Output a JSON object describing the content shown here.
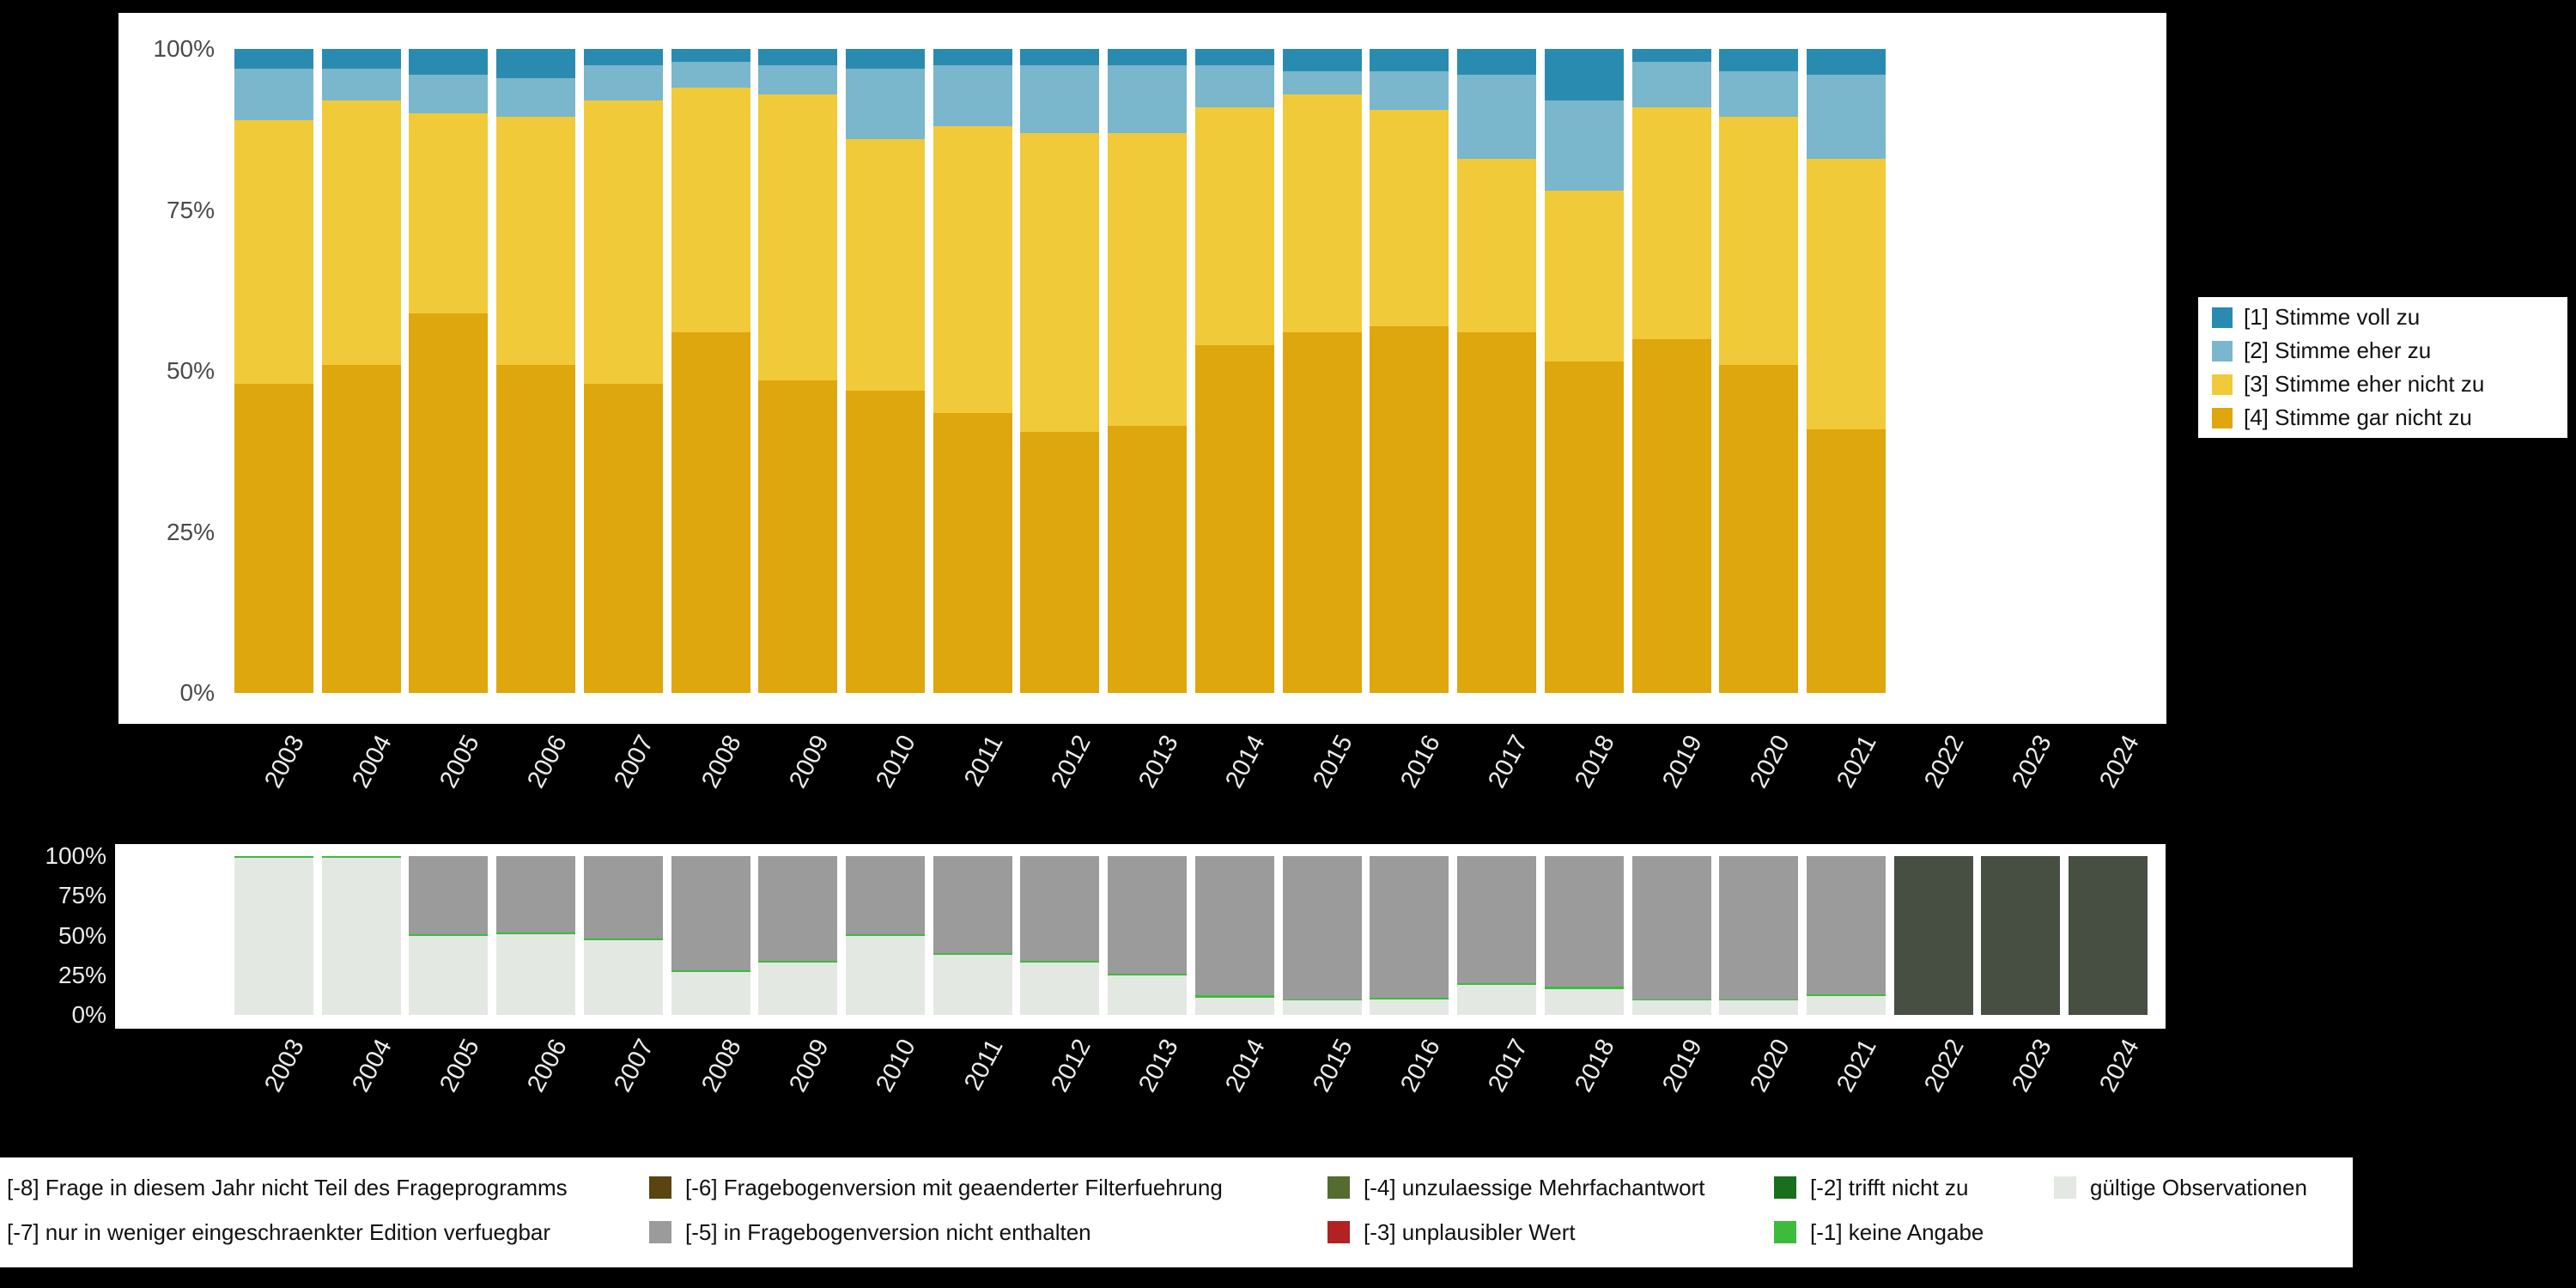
{
  "page": {
    "background": "#000000"
  },
  "chart_data": [
    {
      "type": "bar",
      "stacked": true,
      "percent": true,
      "title": "",
      "xlabel": "",
      "ylabel": "",
      "ylim": [
        0,
        100
      ],
      "grid": false,
      "y_ticks": [
        "100%",
        "75%",
        "50%",
        "25%",
        "0%"
      ],
      "years": [
        "2003",
        "2004",
        "2005",
        "2006",
        "2007",
        "2008",
        "2009",
        "2010",
        "2011",
        "2012",
        "2013",
        "2014",
        "2015",
        "2016",
        "2017",
        "2018",
        "2019",
        "2020",
        "2021",
        "2022",
        "2023",
        "2024"
      ],
      "stack_order": [
        3,
        2,
        1,
        0
      ],
      "series": [
        {
          "name": "[1] Stimme voll zu",
          "color": "#2a8bb0",
          "values": [
            3,
            3,
            4,
            4.5,
            2.5,
            2,
            2.5,
            3,
            2.5,
            2.5,
            2.5,
            2.5,
            3.5,
            3.5,
            4,
            8,
            2,
            3.5,
            4,
            null,
            null,
            null
          ]
        },
        {
          "name": "[2] Stimme eher zu",
          "color": "#7ab6cc",
          "values": [
            8,
            5,
            6,
            6,
            5.5,
            4,
            4.5,
            11,
            9.5,
            10.5,
            10.5,
            6.5,
            3.5,
            6,
            13,
            14,
            7,
            7,
            13,
            null,
            null,
            null
          ]
        },
        {
          "name": "[3] Stimme eher nicht zu",
          "color": "#f0ca39",
          "values": [
            41,
            41,
            31,
            38.5,
            44,
            38,
            44.5,
            39,
            44.5,
            46.5,
            45.5,
            37,
            37,
            33.5,
            27,
            26.5,
            36,
            38.5,
            42,
            null,
            null,
            null
          ]
        },
        {
          "name": "[4] Stimme gar nicht zu",
          "color": "#dda70d",
          "values": [
            48,
            51,
            59,
            51,
            48,
            56,
            48.5,
            47,
            43.5,
            40.5,
            41.5,
            54,
            56,
            57,
            56,
            51.5,
            55,
            51,
            41,
            null,
            null,
            null
          ]
        }
      ],
      "legend_position": "right"
    },
    {
      "type": "bar",
      "stacked": true,
      "percent": true,
      "title": "",
      "xlabel": "",
      "ylabel": "",
      "ylim": [
        0,
        100
      ],
      "grid": false,
      "y_ticks": [
        "100%",
        "75%",
        "50%",
        "25%",
        "0%"
      ],
      "years": [
        "2003",
        "2004",
        "2005",
        "2006",
        "2007",
        "2008",
        "2009",
        "2010",
        "2011",
        "2012",
        "2013",
        "2014",
        "2015",
        "2016",
        "2017",
        "2018",
        "2019",
        "2020",
        "2021",
        "2022",
        "2023",
        "2024"
      ],
      "stack_order": [
        0,
        1,
        2,
        3
      ],
      "series": [
        {
          "name": "gültige Observationen",
          "color": "#e4e8e2",
          "values": [
            99,
            99,
            50,
            51,
            47,
            27,
            33,
            50,
            38,
            33,
            25,
            11,
            9,
            10,
            19,
            16,
            9,
            9,
            12,
            0,
            0,
            0
          ]
        },
        {
          "name": "[-1] keine Angabe",
          "color": "#3dbb3d",
          "values": [
            1,
            1,
            1,
            1,
            1,
            1,
            1,
            1,
            1,
            1,
            1,
            1.5,
            1,
            1,
            1,
            2,
            1,
            1,
            1,
            0,
            0,
            0
          ]
        },
        {
          "name": "[-5] in Fragebogenversion nicht enthalten",
          "color": "#9b9b9b",
          "values": [
            0,
            0,
            49,
            48,
            52,
            72,
            66,
            49,
            61,
            66,
            74,
            87.5,
            90,
            89,
            80,
            82,
            90,
            90,
            87,
            0,
            0,
            0
          ]
        },
        {
          "name": "[-8] Frage in diesem Jahr nicht Teil des Frageprogramms",
          "color": "#474f43",
          "values": [
            0,
            0,
            0,
            0,
            0,
            0,
            0,
            0,
            0,
            0,
            0,
            0,
            0,
            0,
            0,
            0,
            0,
            0,
            0,
            100,
            100,
            100
          ]
        }
      ],
      "legend_position": "bottom"
    }
  ],
  "legend_missing": {
    "rows": [
      [
        {
          "label": "[-8] Frage in diesem Jahr nicht Teil des Frageprogramms",
          "color": "#474f43"
        },
        {
          "label": "[-6] Fragebogenversion mit geaenderter Filterfuehrung",
          "color": "#5a450f"
        },
        {
          "label": "[-4] unzulaessige Mehrfachantwort",
          "color": "#556b2f"
        },
        {
          "label": "[-2] trifft nicht zu",
          "color": "#1b6e1b"
        },
        {
          "label": "gültige Observationen",
          "color": "#e4e8e2"
        }
      ],
      [
        {
          "label": "[-7] nur in weniger eingeschraenkter Edition verfuegbar",
          "color": "#8a8a8a"
        },
        {
          "label": "[-5] in Fragebogenversion nicht enthalten",
          "color": "#9b9b9b"
        },
        {
          "label": "[-3] unplausibler Wert",
          "color": "#b22222"
        },
        {
          "label": "[-1] keine Angabe",
          "color": "#3dbb3d"
        }
      ]
    ]
  }
}
